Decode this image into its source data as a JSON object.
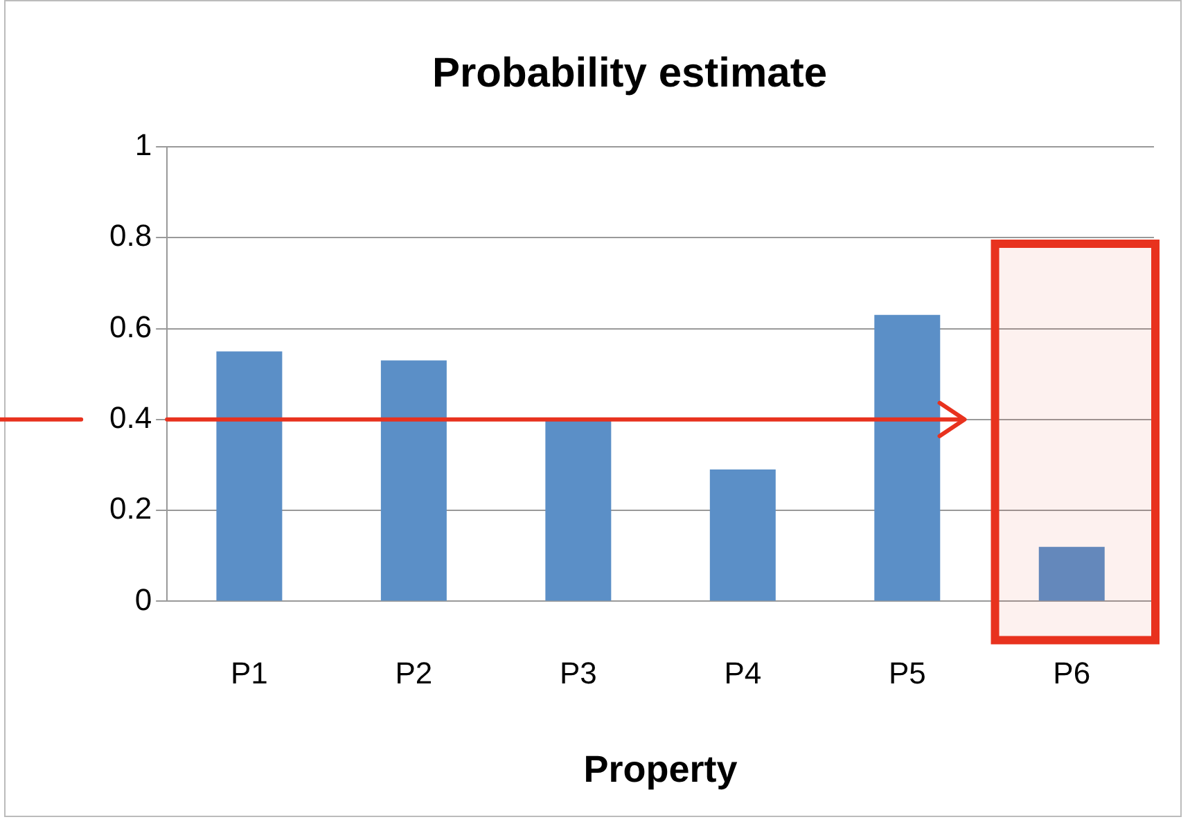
{
  "chart_data": {
    "type": "bar",
    "title": "Probability estimate",
    "xlabel": "Property",
    "categories": [
      "P1",
      "P2",
      "P3",
      "P4",
      "P5",
      "P6"
    ],
    "values": [
      0.55,
      0.53,
      0.4,
      0.29,
      0.63,
      0.12
    ],
    "color": "#5b8fc7",
    "ref_lines": [
      {
        "axis": "y",
        "value": 0.4,
        "color": "#e8321e"
      }
    ],
    "bands": [
      {
        "axis": "x",
        "from": "P6",
        "to": "P6",
        "color": "#e8321e"
      }
    ],
    "ylim": [
      0,
      1
    ],
    "yticks": [
      0,
      0.2,
      0.4,
      0.6,
      0.8,
      1
    ],
    "grid": "y",
    "legend": false
  }
}
